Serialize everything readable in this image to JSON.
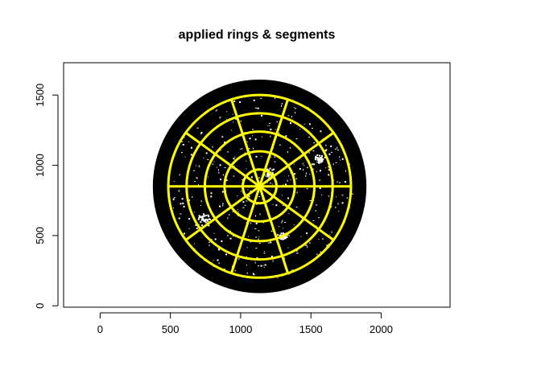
{
  "chart_data": {
    "type": "image",
    "title": "applied rings & segments",
    "xlabel": "",
    "ylabel": "",
    "xlim": [
      -260,
      2490
    ],
    "ylim": [
      -10,
      1730
    ],
    "xticks": [
      0,
      500,
      1000,
      1500,
      2000
    ],
    "yticks": [
      0,
      500,
      1000,
      1500
    ],
    "disc": {
      "center": [
        1135,
        850
      ],
      "radius": 760,
      "color": "#000000"
    },
    "rings": {
      "center": [
        1135,
        850
      ],
      "radii": [
        120,
        250,
        390,
        520,
        650
      ],
      "color": "#ffff00"
    },
    "segments": {
      "count": 10,
      "inner_radius": 0,
      "outer_radius": 650,
      "start_angle_deg": 0,
      "color": "#ffff00"
    },
    "grid": false,
    "legend": "none"
  }
}
